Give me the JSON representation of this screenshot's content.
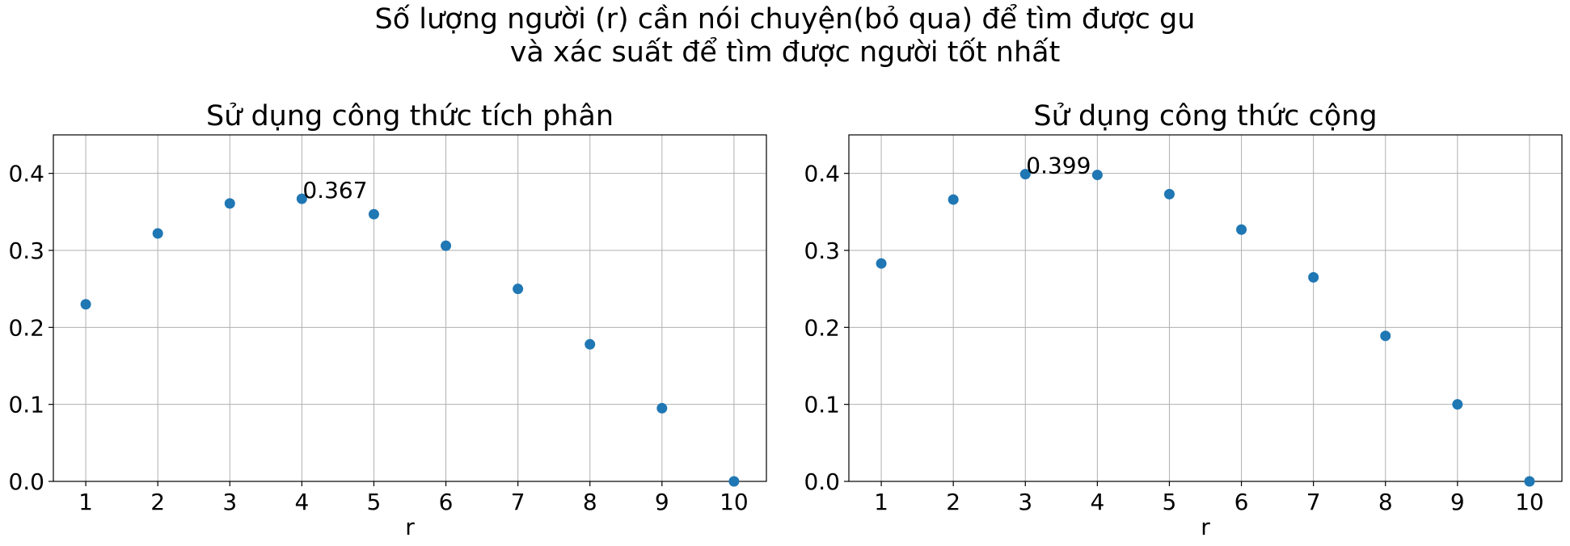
{
  "suptitle": {
    "line1": "Số lượng người (r) cần nói chuyện(bỏ qua) để tìm được gu",
    "line2": "và xác suất để tìm được người tốt nhất"
  },
  "chart_data": [
    {
      "type": "scatter",
      "title": "Sử dụng công thức tích phân",
      "xlabel": "r",
      "ylabel": "",
      "x": [
        1,
        2,
        3,
        4,
        5,
        6,
        7,
        8,
        9,
        10
      ],
      "y": [
        0.23,
        0.322,
        0.361,
        0.367,
        0.347,
        0.306,
        0.25,
        0.178,
        0.095,
        0.0
      ],
      "xticks": [
        "1",
        "2",
        "3",
        "4",
        "5",
        "6",
        "7",
        "8",
        "9",
        "10"
      ],
      "yticks": [
        "0.0",
        "0.1",
        "0.2",
        "0.3",
        "0.4"
      ],
      "xlim": [
        0.55,
        10.45
      ],
      "ylim": [
        0,
        0.45
      ],
      "grid": true,
      "marker_color": "#1f77b4",
      "annotation": {
        "text": "0.367",
        "x": 4,
        "y": 0.367
      }
    },
    {
      "type": "scatter",
      "title": "Sử dụng công thức cộng",
      "xlabel": "r",
      "ylabel": "",
      "x": [
        1,
        2,
        3,
        4,
        5,
        6,
        7,
        8,
        9,
        10
      ],
      "y": [
        0.283,
        0.366,
        0.399,
        0.398,
        0.373,
        0.327,
        0.265,
        0.189,
        0.1,
        0.0
      ],
      "xticks": [
        "1",
        "2",
        "3",
        "4",
        "5",
        "6",
        "7",
        "8",
        "9",
        "10"
      ],
      "yticks": [
        "0.0",
        "0.1",
        "0.2",
        "0.3",
        "0.4"
      ],
      "xlim": [
        0.55,
        10.45
      ],
      "ylim": [
        0,
        0.45
      ],
      "grid": true,
      "marker_color": "#1f77b4",
      "annotation": {
        "text": "0.399",
        "x": 3,
        "y": 0.399
      }
    }
  ]
}
